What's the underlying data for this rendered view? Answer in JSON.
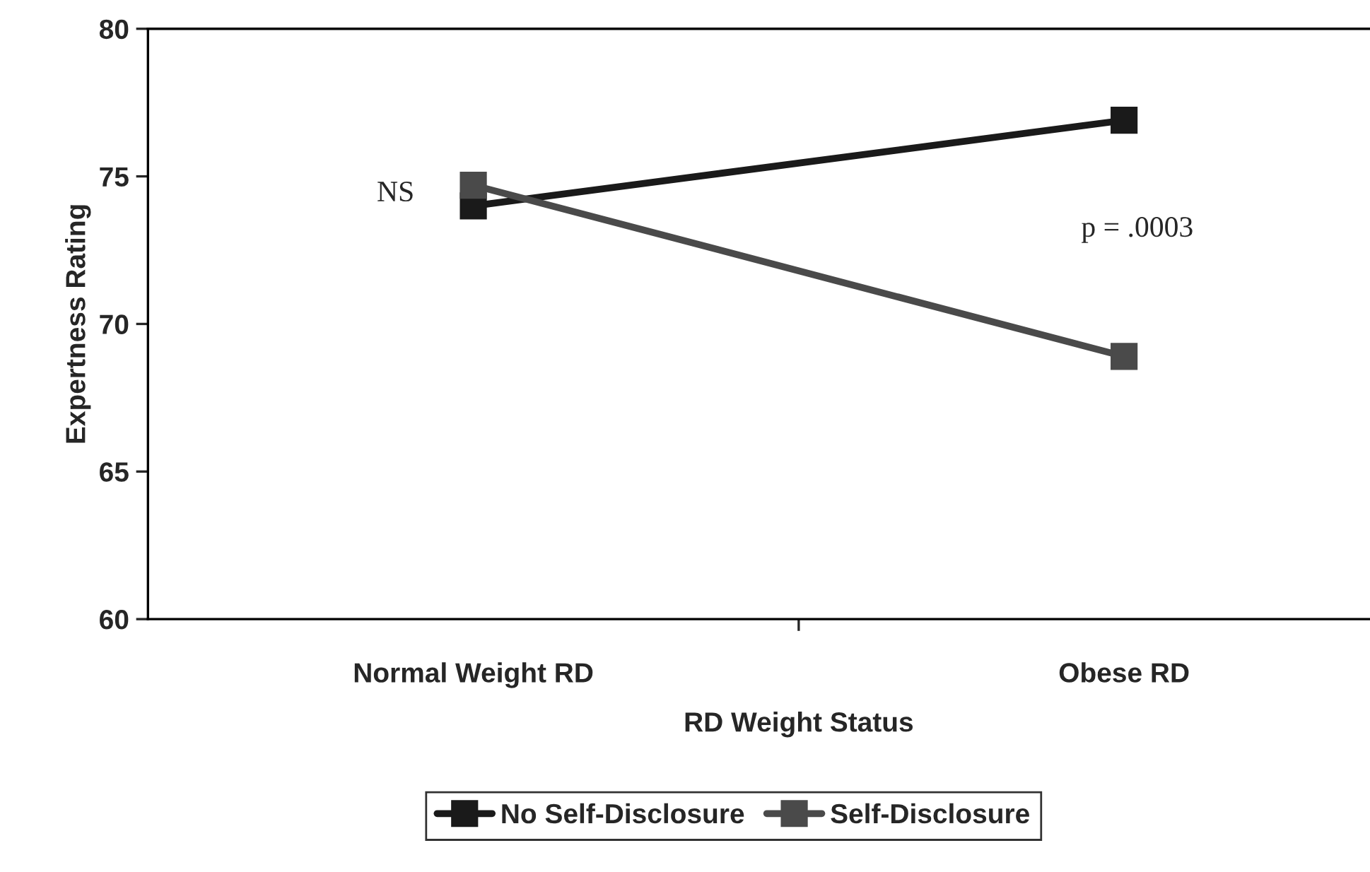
{
  "chart_data": {
    "type": "line",
    "xlabel": "RD Weight Status",
    "ylabel": "Expertness Rating",
    "categories": [
      "Normal Weight RD",
      "Obese RD"
    ],
    "series": [
      {
        "name": "No Self-Disclosure",
        "color": "#1a1a1a",
        "values": [
          74.0,
          76.9
        ]
      },
      {
        "name": "Self-Disclosure",
        "color": "#4a4a4a",
        "values": [
          74.7,
          68.9
        ]
      }
    ],
    "ylim": [
      60,
      80
    ],
    "yticks": [
      60,
      65,
      70,
      75,
      80
    ],
    "grid": false,
    "legend": "bottom",
    "marker": "square",
    "line_style": "solid",
    "annotations": [
      {
        "text": "NS",
        "x": "Normal Weight RD",
        "y": 74.4
      },
      "p = .0003"
    ]
  }
}
